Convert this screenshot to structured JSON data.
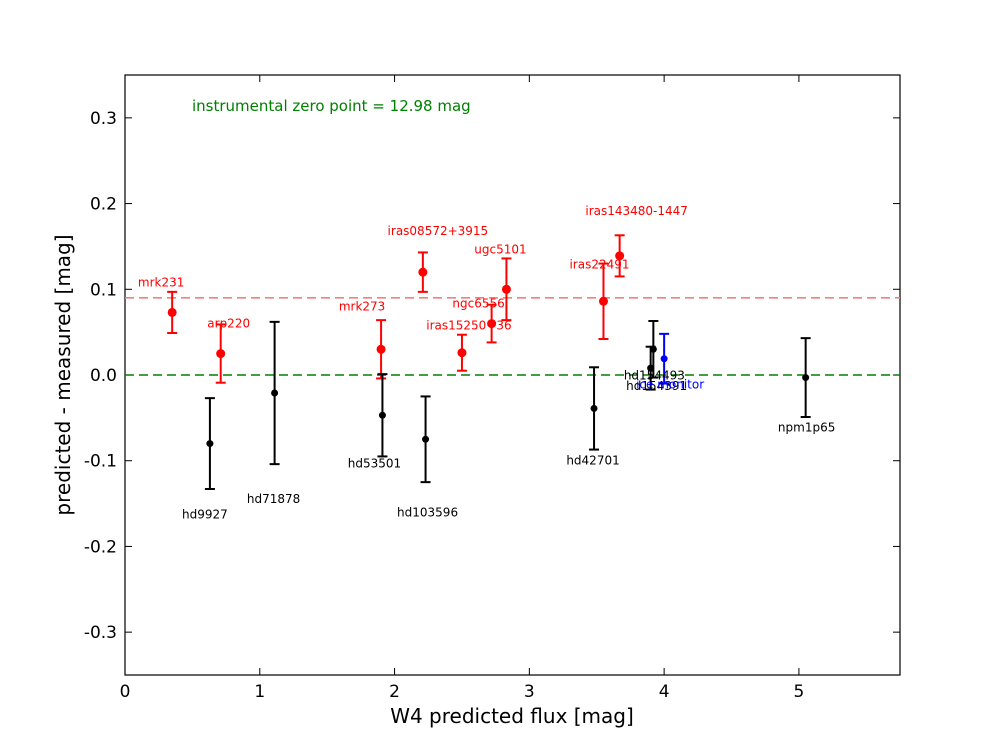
{
  "chart_data": {
    "type": "scatter",
    "title": "",
    "xlabel": "W4 predicted flux [mag]",
    "ylabel": "predicted - measured [mag]",
    "xlim": [
      0,
      5.75
    ],
    "ylim": [
      -0.35,
      0.35
    ],
    "x_ticks": [
      "0",
      "1",
      "2",
      "3",
      "4",
      "5"
    ],
    "y_ticks": [
      "-0.3",
      "-0.2",
      "-0.1",
      "0.0",
      "0.1",
      "0.2",
      "0.3"
    ],
    "grid": false,
    "annotation": {
      "text": "instrumental zero point = 12.98 mag",
      "color": "#008000"
    },
    "hlines": [
      {
        "y": 0.0,
        "color": "#008000",
        "style": "dashed"
      },
      {
        "y": 0.09,
        "color": "#f08080",
        "style": "dashed"
      }
    ],
    "series": [
      {
        "color": "#ff0000",
        "points": [
          {
            "label": "mrk231",
            "x": 0.35,
            "y": 0.073,
            "err": 0.024
          },
          {
            "label": "arp220",
            "x": 0.71,
            "y": 0.025,
            "err": 0.034
          },
          {
            "label": "mrk273",
            "x": 1.9,
            "y": 0.03,
            "err": 0.034
          },
          {
            "label": "iras08572+3915",
            "x": 2.21,
            "y": 0.12,
            "err": 0.023
          },
          {
            "label": "iras15250+36",
            "x": 2.5,
            "y": 0.026,
            "err": 0.021
          },
          {
            "label": "ngc6556",
            "x": 2.72,
            "y": 0.06,
            "err": 0.022
          },
          {
            "label": "ugc5101",
            "x": 2.83,
            "y": 0.1,
            "err": 0.036
          },
          {
            "label": "iras22491",
            "x": 3.55,
            "y": 0.086,
            "err": 0.044
          },
          {
            "label": "iras143480-1447",
            "x": 3.67,
            "y": 0.139,
            "err": 0.024
          }
        ]
      },
      {
        "color": "#000000",
        "points": [
          {
            "label": "hd9927",
            "x": 0.63,
            "y": -0.08,
            "err": 0.053
          },
          {
            "label": "hd71878",
            "x": 1.11,
            "y": -0.021,
            "err": 0.083
          },
          {
            "label": "hd53501",
            "x": 1.91,
            "y": -0.047,
            "err": 0.048
          },
          {
            "label": "hd103596",
            "x": 2.23,
            "y": -0.075,
            "err": 0.05
          },
          {
            "label": "hd42701",
            "x": 3.48,
            "y": -0.039,
            "err": 0.048
          },
          {
            "label": "hd154391",
            "x": 3.9,
            "y": 0.008,
            "err": 0.025
          },
          {
            "label": "hd154493",
            "x": 3.92,
            "y": 0.03,
            "err": 0.033
          },
          {
            "label": "npm1p65",
            "x": 5.05,
            "y": -0.003,
            "err": 0.046
          }
        ]
      },
      {
        "color": "#0000ff",
        "points": [
          {
            "label": "ice monitor",
            "x": 4.0,
            "y": 0.019,
            "err": 0.029
          }
        ]
      }
    ]
  }
}
